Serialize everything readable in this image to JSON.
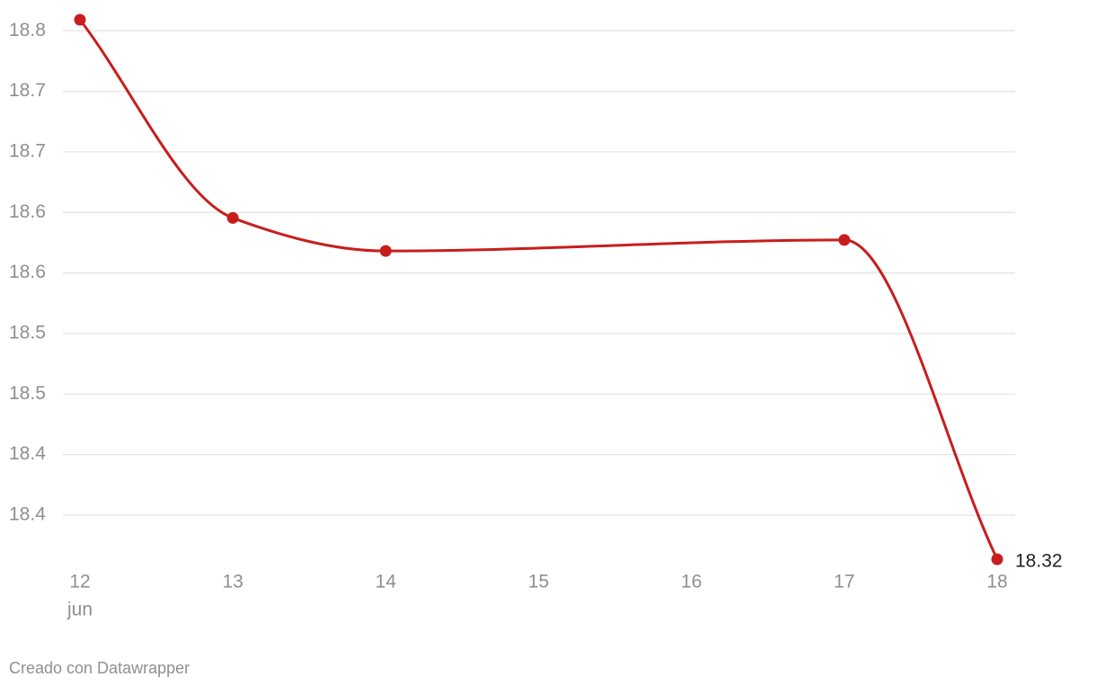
{
  "chart_data": {
    "type": "line",
    "x": [
      12,
      13,
      14,
      17,
      18
    ],
    "values": [
      18.81,
      18.63,
      18.6,
      18.61,
      18.32
    ],
    "color": "#c71e1d",
    "xlim": [
      12,
      18
    ],
    "xticks": [
      12,
      13,
      14,
      15,
      16,
      17,
      18
    ],
    "x_sublabel": "jun",
    "ylim": [
      18.32,
      18.81
    ],
    "yticks": [
      18.8,
      {
        "value": 18.745,
        "label": "18.7"
      },
      {
        "value": 18.69,
        "label": "18.7"
      },
      {
        "value": 18.635,
        "label": "18.6"
      },
      {
        "value": 18.58,
        "label": "18.6"
      },
      {
        "value": 18.525,
        "label": "18.5"
      },
      {
        "value": 18.47,
        "label": "18.5"
      },
      {
        "value": 18.415,
        "label": "18.4"
      },
      {
        "value": 18.36,
        "label": "18.4"
      }
    ],
    "grid": true,
    "footer": "Creado con Datawrapper"
  }
}
